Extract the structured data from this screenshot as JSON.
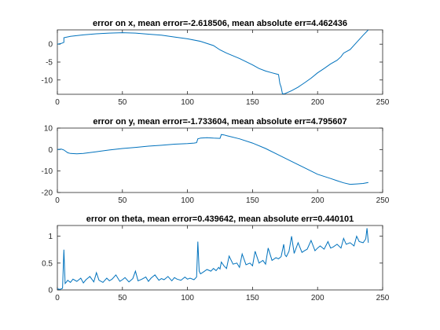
{
  "colors": {
    "series": "#0072BD",
    "axes": "#262626"
  },
  "chart_data": [
    {
      "type": "line",
      "title": "error on x, mean error=-2.618506, mean absolute err=4.462436",
      "xlim": [
        0,
        250
      ],
      "ylim": [
        -14,
        4
      ],
      "xticks": [
        0,
        50,
        100,
        150,
        200,
        250
      ],
      "yticks": [
        0,
        -5,
        -10
      ],
      "series": [
        {
          "x": [
            0,
            3,
            5,
            5,
            10,
            20,
            30,
            40,
            50,
            60,
            70,
            80,
            90,
            100,
            110,
            120,
            125,
            130,
            140,
            150,
            155,
            160,
            165,
            168,
            170,
            171,
            172,
            173,
            175,
            180,
            185,
            190,
            195,
            200,
            205,
            210,
            215,
            218,
            220,
            225,
            230,
            235,
            239
          ],
          "values": [
            0,
            0.2,
            0.5,
            1.8,
            2.2,
            2.6,
            2.9,
            3.1,
            3.2,
            3.1,
            2.8,
            2.5,
            2.0,
            1.5,
            0.8,
            -0.4,
            -1.6,
            -2.5,
            -4.0,
            -5.8,
            -6.8,
            -7.5,
            -8.0,
            -8.3,
            -8.5,
            -11.0,
            -12.0,
            -13.9,
            -13.8,
            -13.0,
            -12.0,
            -10.8,
            -9.5,
            -8.0,
            -6.8,
            -5.5,
            -4.5,
            -3.5,
            -2.5,
            -1.5,
            0.5,
            2.5,
            4.0
          ]
        }
      ]
    },
    {
      "type": "line",
      "title": "error on y, mean error=-1.733604, mean absolute err=4.795607",
      "xlim": [
        0,
        250
      ],
      "ylim": [
        -20,
        10
      ],
      "xticks": [
        0,
        50,
        100,
        150,
        200,
        250
      ],
      "yticks": [
        10,
        0,
        -10,
        -20
      ],
      "series": [
        {
          "x": [
            0,
            3,
            5,
            8,
            10,
            15,
            20,
            30,
            40,
            50,
            60,
            70,
            80,
            90,
            100,
            105,
            107,
            108,
            110,
            115,
            120,
            125,
            126,
            128,
            130,
            140,
            150,
            160,
            170,
            180,
            190,
            200,
            210,
            215,
            220,
            225,
            230,
            235,
            239
          ],
          "values": [
            0,
            0.2,
            -0.2,
            -1.5,
            -1.8,
            -2.0,
            -1.8,
            -1.0,
            -0.2,
            0.5,
            1.0,
            1.6,
            2.0,
            2.5,
            2.8,
            3.0,
            3.2,
            5.0,
            5.3,
            5.5,
            5.3,
            5.2,
            7.0,
            6.8,
            6.5,
            5.0,
            3.0,
            0.5,
            -2.5,
            -5.5,
            -8.5,
            -11.5,
            -13.5,
            -14.5,
            -15.5,
            -16.2,
            -16.0,
            -15.8,
            -15.3
          ]
        }
      ]
    },
    {
      "type": "line",
      "title": "error on theta, mean error=0.439642, mean absolute err=0.440101",
      "xlim": [
        0,
        250
      ],
      "ylim": [
        0,
        1.2
      ],
      "xticks": [
        0,
        50,
        100,
        150,
        200,
        250
      ],
      "yticks": [
        1,
        0.5,
        0
      ],
      "series": [
        {
          "x": [
            0,
            2,
            4,
            5,
            6,
            7,
            8,
            10,
            12,
            15,
            18,
            20,
            22,
            25,
            28,
            30,
            32,
            35,
            38,
            40,
            42,
            45,
            48,
            50,
            52,
            55,
            58,
            60,
            62,
            65,
            68,
            70,
            72,
            75,
            78,
            80,
            82,
            85,
            88,
            90,
            92,
            95,
            98,
            100,
            102,
            105,
            107,
            108,
            109,
            110,
            112,
            115,
            118,
            120,
            122,
            124,
            125,
            126,
            128,
            130,
            132,
            135,
            138,
            140,
            142,
            145,
            148,
            150,
            152,
            155,
            158,
            160,
            162,
            165,
            168,
            170,
            172,
            174,
            175,
            176,
            178,
            180,
            182,
            185,
            188,
            190,
            192,
            195,
            198,
            200,
            202,
            205,
            208,
            210,
            212,
            215,
            218,
            220,
            222,
            225,
            228,
            230,
            232,
            235,
            237,
            238,
            239
          ],
          "values": [
            0.02,
            0.01,
            0.03,
            0.75,
            0.12,
            0.15,
            0.18,
            0.14,
            0.2,
            0.16,
            0.22,
            0.13,
            0.19,
            0.25,
            0.15,
            0.32,
            0.18,
            0.14,
            0.22,
            0.17,
            0.2,
            0.28,
            0.16,
            0.19,
            0.23,
            0.15,
            0.21,
            0.35,
            0.17,
            0.2,
            0.24,
            0.16,
            0.22,
            0.28,
            0.18,
            0.21,
            0.19,
            0.25,
            0.17,
            0.23,
            0.2,
            0.18,
            0.24,
            0.2,
            0.22,
            0.19,
            0.24,
            0.9,
            0.35,
            0.3,
            0.33,
            0.38,
            0.35,
            0.4,
            0.36,
            0.42,
            0.39,
            0.52,
            0.45,
            0.4,
            0.63,
            0.48,
            0.5,
            0.42,
            0.67,
            0.47,
            0.5,
            0.45,
            0.72,
            0.5,
            0.55,
            0.48,
            0.78,
            0.55,
            0.6,
            0.58,
            0.62,
            0.85,
            0.65,
            0.62,
            0.72,
            1.0,
            0.68,
            0.88,
            0.7,
            0.73,
            0.76,
            0.92,
            0.73,
            0.78,
            0.82,
            0.76,
            0.9,
            0.78,
            0.8,
            0.85,
            0.78,
            0.96,
            0.85,
            0.88,
            0.82,
            1.0,
            0.9,
            0.88,
            0.95,
            1.15,
            0.88
          ]
        }
      ]
    }
  ]
}
